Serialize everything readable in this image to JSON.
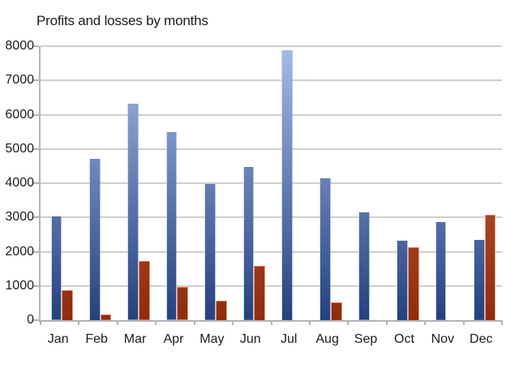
{
  "title": "Profits and losses by months",
  "colors": {
    "background": "#ffffff",
    "text": "#1c1c1c",
    "gridline": "#cfcfcf",
    "axis": "#b3b3b3",
    "profit_bar_top": "#a6bbe8",
    "profit_bar_bottom": "#24417e",
    "loss_bar_top": "#cc6a45",
    "loss_bar_bottom": "#8e2c0e"
  },
  "chart_data": {
    "type": "bar",
    "title": "Profits and losses by months",
    "categories": [
      "Jan",
      "Feb",
      "Mar",
      "Apr",
      "May",
      "Jun",
      "Jul",
      "Aug",
      "Sep",
      "Oct",
      "Nov",
      "Dec"
    ],
    "series": [
      {
        "name": "Profits",
        "color_top": "#a6bbe8",
        "color_bottom": "#24417e",
        "values": [
          3020,
          4720,
          6310,
          5480,
          3970,
          4470,
          7880,
          4150,
          3140,
          2320,
          2860,
          2340
        ]
      },
      {
        "name": "Losses",
        "color_top": "#cc6a45",
        "color_bottom": "#8e2c0e",
        "values": [
          880,
          160,
          1720,
          960,
          570,
          1590,
          0,
          530,
          0,
          2140,
          0,
          3080
        ]
      }
    ],
    "xlabel": "",
    "ylabel": "",
    "ylim": [
      0,
      8000
    ],
    "ytick_step": 1000,
    "ytick_labels": [
      "0",
      "1000",
      "2000",
      "3000",
      "4000",
      "5000",
      "6000",
      "7000",
      "8000"
    ],
    "grid": true,
    "legend_position": "none"
  }
}
